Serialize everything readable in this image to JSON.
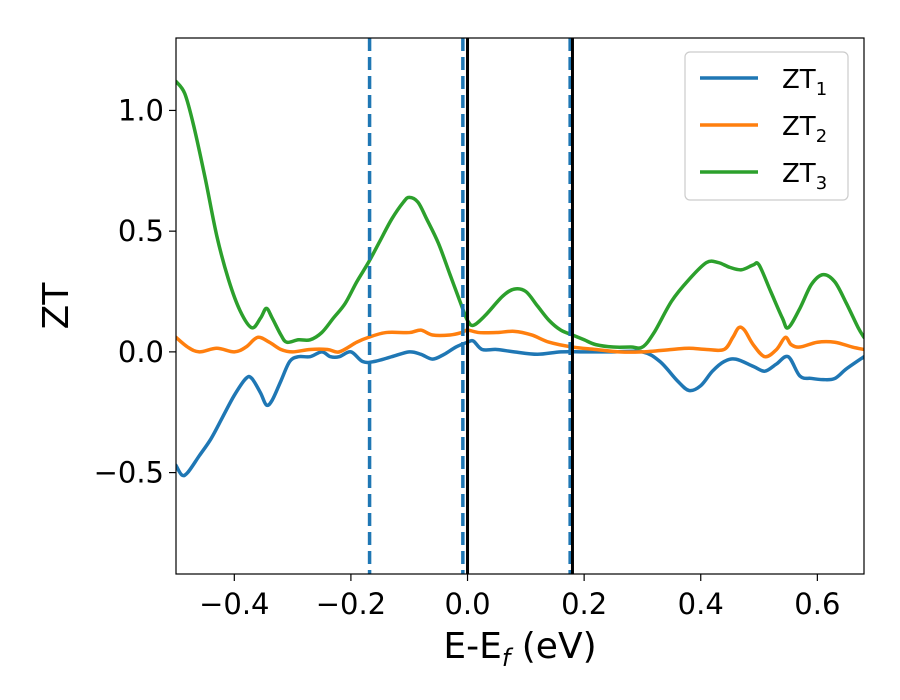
{
  "chart_data": {
    "type": "line",
    "xlabel": {
      "main": "E-E",
      "sub": "f",
      "unit": " (eV)"
    },
    "ylabel": "ZT",
    "xlim": [
      -0.5,
      0.68
    ],
    "ylim": [
      -0.92,
      1.3
    ],
    "xticks": [
      {
        "value": -0.4,
        "label": "−0.4"
      },
      {
        "value": -0.2,
        "label": "−0.2"
      },
      {
        "value": 0.0,
        "label": "0.0"
      },
      {
        "value": 0.2,
        "label": "0.2"
      },
      {
        "value": 0.4,
        "label": "0.4"
      },
      {
        "value": 0.6,
        "label": "0.6"
      }
    ],
    "yticks": [
      {
        "value": -0.5,
        "label": "−0.5"
      },
      {
        "value": 0.0,
        "label": "0.0"
      },
      {
        "value": 0.5,
        "label": "0.5"
      },
      {
        "value": 1.0,
        "label": "1.0"
      }
    ],
    "grid": false,
    "legend_position": "top-right",
    "series": [
      {
        "name": "ZT",
        "sub": "1",
        "color": "#1f77b4",
        "points": [
          [
            -0.5,
            -0.47
          ],
          [
            -0.49,
            -0.51
          ],
          [
            -0.48,
            -0.5
          ],
          [
            -0.46,
            -0.43
          ],
          [
            -0.44,
            -0.36
          ],
          [
            -0.42,
            -0.27
          ],
          [
            -0.4,
            -0.18
          ],
          [
            -0.38,
            -0.11
          ],
          [
            -0.37,
            -0.11
          ],
          [
            -0.355,
            -0.17
          ],
          [
            -0.345,
            -0.22
          ],
          [
            -0.335,
            -0.2
          ],
          [
            -0.32,
            -0.12
          ],
          [
            -0.305,
            -0.04
          ],
          [
            -0.29,
            -0.02
          ],
          [
            -0.27,
            -0.02
          ],
          [
            -0.25,
            0.0
          ],
          [
            -0.235,
            -0.02
          ],
          [
            -0.22,
            -0.02
          ],
          [
            -0.2,
            0.0
          ],
          [
            -0.18,
            -0.04
          ],
          [
            -0.16,
            -0.04
          ],
          [
            -0.13,
            -0.02
          ],
          [
            -0.1,
            0.0
          ],
          [
            -0.08,
            -0.01
          ],
          [
            -0.06,
            -0.03
          ],
          [
            -0.04,
            -0.01
          ],
          [
            -0.02,
            0.02
          ],
          [
            0.0,
            0.04
          ],
          [
            0.01,
            0.045
          ],
          [
            0.025,
            0.01
          ],
          [
            0.05,
            0.01
          ],
          [
            0.08,
            0.0
          ],
          [
            0.12,
            -0.01
          ],
          [
            0.16,
            0.0
          ],
          [
            0.2,
            0.0
          ],
          [
            0.25,
            0.0
          ],
          [
            0.3,
            0.0
          ],
          [
            0.33,
            -0.04
          ],
          [
            0.36,
            -0.12
          ],
          [
            0.38,
            -0.16
          ],
          [
            0.4,
            -0.14
          ],
          [
            0.42,
            -0.08
          ],
          [
            0.44,
            -0.04
          ],
          [
            0.46,
            -0.03
          ],
          [
            0.49,
            -0.06
          ],
          [
            0.51,
            -0.08
          ],
          [
            0.53,
            -0.05
          ],
          [
            0.55,
            -0.02
          ],
          [
            0.57,
            -0.1
          ],
          [
            0.59,
            -0.11
          ],
          [
            0.61,
            -0.115
          ],
          [
            0.63,
            -0.11
          ],
          [
            0.65,
            -0.07
          ],
          [
            0.68,
            -0.02
          ]
        ]
      },
      {
        "name": "ZT",
        "sub": "2",
        "color": "#ff7f0e",
        "points": [
          [
            -0.5,
            0.06
          ],
          [
            -0.48,
            0.02
          ],
          [
            -0.46,
            0.0
          ],
          [
            -0.43,
            0.015
          ],
          [
            -0.4,
            0.0
          ],
          [
            -0.38,
            0.02
          ],
          [
            -0.36,
            0.06
          ],
          [
            -0.34,
            0.04
          ],
          [
            -0.32,
            0.01
          ],
          [
            -0.3,
            0.0
          ],
          [
            -0.27,
            0.01
          ],
          [
            -0.24,
            0.01
          ],
          [
            -0.22,
            0.0
          ],
          [
            -0.19,
            0.04
          ],
          [
            -0.17,
            0.06
          ],
          [
            -0.14,
            0.08
          ],
          [
            -0.1,
            0.08
          ],
          [
            -0.08,
            0.09
          ],
          [
            -0.06,
            0.07
          ],
          [
            -0.03,
            0.07
          ],
          [
            -0.01,
            0.08
          ],
          [
            0.0,
            0.09
          ],
          [
            0.02,
            0.08
          ],
          [
            0.05,
            0.08
          ],
          [
            0.08,
            0.085
          ],
          [
            0.11,
            0.07
          ],
          [
            0.14,
            0.04
          ],
          [
            0.18,
            0.02
          ],
          [
            0.22,
            0.01
          ],
          [
            0.26,
            0.0
          ],
          [
            0.3,
            0.0
          ],
          [
            0.35,
            0.01
          ],
          [
            0.38,
            0.015
          ],
          [
            0.41,
            0.01
          ],
          [
            0.44,
            0.01
          ],
          [
            0.455,
            0.06
          ],
          [
            0.465,
            0.1
          ],
          [
            0.475,
            0.09
          ],
          [
            0.49,
            0.03
          ],
          [
            0.51,
            -0.02
          ],
          [
            0.53,
            0.01
          ],
          [
            0.545,
            0.06
          ],
          [
            0.555,
            0.03
          ],
          [
            0.57,
            0.02
          ],
          [
            0.6,
            0.04
          ],
          [
            0.63,
            0.04
          ],
          [
            0.66,
            0.02
          ],
          [
            0.68,
            0.01
          ]
        ]
      },
      {
        "name": "ZT",
        "sub": "3",
        "color": "#2ca02c",
        "points": [
          [
            -0.5,
            1.12
          ],
          [
            -0.485,
            1.07
          ],
          [
            -0.47,
            0.94
          ],
          [
            -0.45,
            0.72
          ],
          [
            -0.43,
            0.48
          ],
          [
            -0.41,
            0.3
          ],
          [
            -0.39,
            0.17
          ],
          [
            -0.37,
            0.1
          ],
          [
            -0.355,
            0.14
          ],
          [
            -0.345,
            0.18
          ],
          [
            -0.335,
            0.14
          ],
          [
            -0.32,
            0.07
          ],
          [
            -0.31,
            0.04
          ],
          [
            -0.29,
            0.05
          ],
          [
            -0.27,
            0.05
          ],
          [
            -0.25,
            0.08
          ],
          [
            -0.23,
            0.14
          ],
          [
            -0.21,
            0.2
          ],
          [
            -0.19,
            0.29
          ],
          [
            -0.17,
            0.37
          ],
          [
            -0.15,
            0.46
          ],
          [
            -0.13,
            0.55
          ],
          [
            -0.11,
            0.62
          ],
          [
            -0.1,
            0.64
          ],
          [
            -0.085,
            0.62
          ],
          [
            -0.07,
            0.55
          ],
          [
            -0.05,
            0.45
          ],
          [
            -0.03,
            0.32
          ],
          [
            -0.01,
            0.19
          ],
          [
            0.0,
            0.13
          ],
          [
            0.01,
            0.11
          ],
          [
            0.03,
            0.15
          ],
          [
            0.06,
            0.23
          ],
          [
            0.08,
            0.26
          ],
          [
            0.1,
            0.25
          ],
          [
            0.12,
            0.19
          ],
          [
            0.14,
            0.13
          ],
          [
            0.16,
            0.09
          ],
          [
            0.18,
            0.07
          ],
          [
            0.2,
            0.05
          ],
          [
            0.22,
            0.03
          ],
          [
            0.25,
            0.02
          ],
          [
            0.28,
            0.02
          ],
          [
            0.3,
            0.02
          ],
          [
            0.32,
            0.08
          ],
          [
            0.35,
            0.21
          ],
          [
            0.38,
            0.3
          ],
          [
            0.41,
            0.37
          ],
          [
            0.43,
            0.37
          ],
          [
            0.45,
            0.35
          ],
          [
            0.47,
            0.34
          ],
          [
            0.49,
            0.36
          ],
          [
            0.5,
            0.36
          ],
          [
            0.52,
            0.25
          ],
          [
            0.54,
            0.14
          ],
          [
            0.55,
            0.1
          ],
          [
            0.57,
            0.18
          ],
          [
            0.59,
            0.28
          ],
          [
            0.61,
            0.32
          ],
          [
            0.63,
            0.29
          ],
          [
            0.65,
            0.2
          ],
          [
            0.67,
            0.1
          ],
          [
            0.68,
            0.06
          ]
        ]
      }
    ],
    "vlines": [
      {
        "x": -0.168,
        "style": "dashed",
        "color": "#1f77b4"
      },
      {
        "x": -0.008,
        "style": "dashed",
        "color": "#1f77b4"
      },
      {
        "x": 0.0,
        "style": "solid",
        "color": "#000000"
      },
      {
        "x": 0.176,
        "style": "dashed",
        "color": "#1f77b4"
      },
      {
        "x": 0.18,
        "style": "solid",
        "color": "#000000"
      }
    ]
  }
}
